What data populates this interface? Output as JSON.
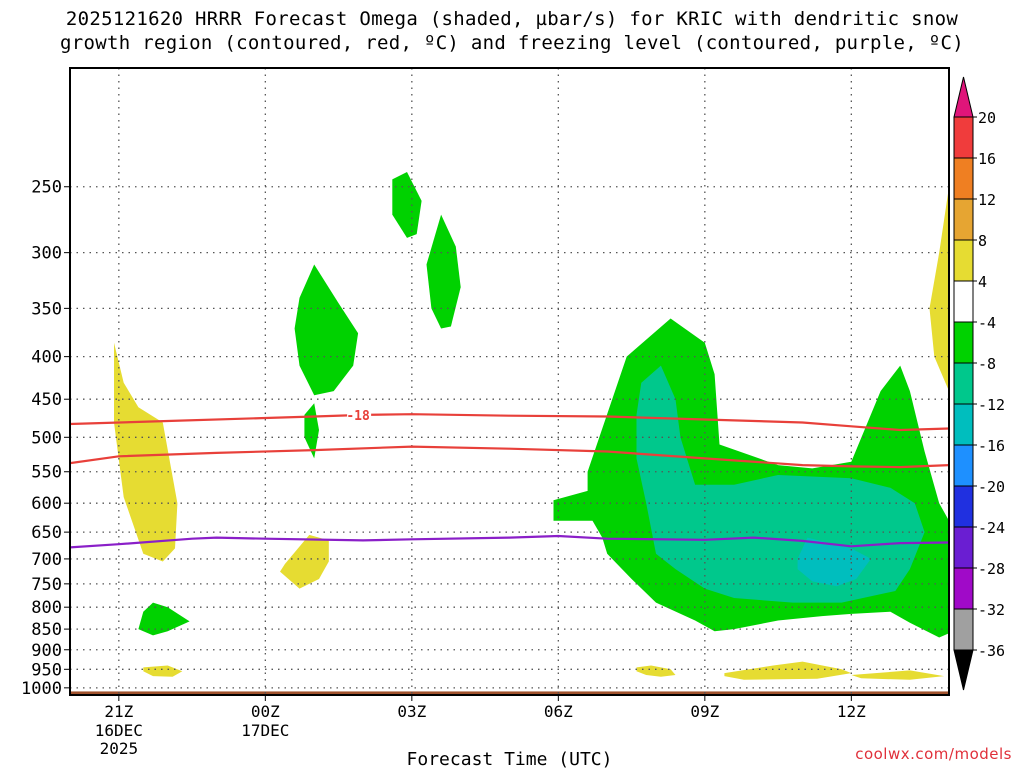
{
  "title": {
    "line1": "2025121620 HRRR Forecast Omega (shaded, µbar/s) for KRIC with dendritic snow",
    "line2": "growth region (contoured, red, ºC) and freezing level (contoured, purple, ºC)"
  },
  "credit": "coolwx.com/models",
  "colors": {
    "frame": "#000000",
    "ground": "#a0522d",
    "red_contour": "#e8403a",
    "purple_contour": "#8a1fc8",
    "grid": "#555555"
  },
  "chart_data": {
    "type": "heatmap",
    "title": "2025121620 HRRR Forecast Omega (shaded, µbar/s) for KRIC with dendritic snow growth region (contoured, red, ºC) and freezing level (contoured, purple, ºC)",
    "xlabel": "Forecast Time (UTC)",
    "ylabel": "",
    "x_range_hours": [
      -1.0,
      17.0
    ],
    "y_range_hpa": [
      180,
      1020
    ],
    "y_scale": "log",
    "x_ticks": [
      {
        "hour": 0,
        "label": "21Z",
        "date": "16DEC",
        "year": "2025"
      },
      {
        "hour": 3,
        "label": "00Z",
        "date": "17DEC",
        "year": ""
      },
      {
        "hour": 6,
        "label": "03Z",
        "date": "",
        "year": ""
      },
      {
        "hour": 9,
        "label": "06Z",
        "date": "",
        "year": ""
      },
      {
        "hour": 12,
        "label": "09Z",
        "date": "",
        "year": ""
      },
      {
        "hour": 15,
        "label": "12Z",
        "date": "",
        "year": ""
      }
    ],
    "y_ticks": [
      250,
      300,
      350,
      400,
      450,
      500,
      550,
      600,
      650,
      700,
      750,
      800,
      850,
      900,
      950,
      1000
    ],
    "ground_level_hpa": 1010,
    "colorbar": {
      "labels": [
        20,
        16,
        12,
        8,
        4,
        -4,
        -8,
        -12,
        -16,
        -20,
        -24,
        -28,
        -32,
        -36
      ],
      "levels": [
        {
          "upper": 20,
          "lower": 16,
          "color": "#f03c3c"
        },
        {
          "upper": 16,
          "lower": 12,
          "color": "#ef7f22"
        },
        {
          "upper": 12,
          "lower": 8,
          "color": "#e6a532"
        },
        {
          "upper": 8,
          "lower": 4,
          "color": "#e6dc32"
        },
        {
          "upper": 4,
          "lower": -4,
          "color": "#ffffff"
        },
        {
          "upper": -4,
          "lower": -8,
          "color": "#00d200"
        },
        {
          "upper": -8,
          "lower": -12,
          "color": "#00c88c"
        },
        {
          "upper": -12,
          "lower": -16,
          "color": "#00bebe"
        },
        {
          "upper": -16,
          "lower": -20,
          "color": "#1e90ff"
        },
        {
          "upper": -20,
          "lower": -24,
          "color": "#2030e0"
        },
        {
          "upper": -24,
          "lower": -28,
          "color": "#6a1ed2"
        },
        {
          "upper": -28,
          "lower": -32,
          "color": "#a00ac8"
        },
        {
          "upper": -32,
          "lower": -36,
          "color": "#a0a0a0"
        }
      ],
      "over_color": "#e0157a",
      "under_color": "#000000"
    },
    "shaded_regions": [
      {
        "level": "4 to 8",
        "color": "#e6dc32",
        "polygon": [
          [
            -0.1,
            385
          ],
          [
            0.1,
            430
          ],
          [
            0.4,
            460
          ],
          [
            0.9,
            480
          ],
          [
            1.2,
            600
          ],
          [
            1.15,
            680
          ],
          [
            0.9,
            705
          ],
          [
            0.5,
            690
          ],
          [
            0.1,
            590
          ],
          [
            -0.1,
            480
          ]
        ]
      },
      {
        "level": "4 to 8",
        "color": "#e6dc32",
        "polygon": [
          [
            0.5,
            945
          ],
          [
            1.0,
            940
          ],
          [
            1.3,
            955
          ],
          [
            1.1,
            970
          ],
          [
            0.7,
            968
          ],
          [
            0.5,
            955
          ]
        ]
      },
      {
        "level": "4 to 8",
        "color": "#e6dc32",
        "polygon": [
          [
            3.4,
            710
          ],
          [
            3.9,
            655
          ],
          [
            4.3,
            665
          ],
          [
            4.3,
            705
          ],
          [
            4.1,
            740
          ],
          [
            3.7,
            760
          ],
          [
            3.3,
            725
          ]
        ]
      },
      {
        "level": "4 to 8",
        "color": "#e6dc32",
        "polygon": [
          [
            10.6,
            945
          ],
          [
            10.9,
            940
          ],
          [
            11.3,
            950
          ],
          [
            11.4,
            965
          ],
          [
            11.1,
            970
          ],
          [
            10.8,
            965
          ],
          [
            10.6,
            955
          ]
        ]
      },
      {
        "level": "4 to 8",
        "color": "#e6dc32",
        "polygon": [
          [
            12.4,
            960
          ],
          [
            13.4,
            940
          ],
          [
            14.0,
            930
          ],
          [
            14.8,
            950
          ],
          [
            15.0,
            960
          ],
          [
            14.3,
            975
          ],
          [
            12.8,
            978
          ],
          [
            12.4,
            968
          ]
        ]
      },
      {
        "level": "4 to 8",
        "color": "#e6dc32",
        "polygon": [
          [
            15.0,
            965
          ],
          [
            16.2,
            953
          ],
          [
            16.9,
            968
          ],
          [
            16.2,
            978
          ],
          [
            15.2,
            974
          ]
        ]
      },
      {
        "level": "4 to 8",
        "color": "#e6dc32",
        "polygon": [
          [
            17.0,
            250
          ],
          [
            16.8,
            300
          ],
          [
            16.6,
            350
          ],
          [
            16.7,
            400
          ],
          [
            17.0,
            440
          ]
        ]
      },
      {
        "level": "-8 to -4",
        "color": "#00d200",
        "polygon": [
          [
            0.7,
            790
          ],
          [
            1.0,
            800
          ],
          [
            1.45,
            832
          ],
          [
            1.0,
            855
          ],
          [
            0.7,
            865
          ],
          [
            0.4,
            850
          ],
          [
            0.5,
            810
          ]
        ]
      },
      {
        "level": "-8 to -4",
        "color": "#00d200",
        "polygon": [
          [
            4.0,
            310
          ],
          [
            4.5,
            345
          ],
          [
            4.9,
            375
          ],
          [
            4.8,
            410
          ],
          [
            4.4,
            440
          ],
          [
            4.0,
            445
          ],
          [
            3.7,
            410
          ],
          [
            3.6,
            370
          ],
          [
            3.7,
            340
          ]
        ]
      },
      {
        "level": "-8 to -4",
        "color": "#00d200",
        "polygon": [
          [
            4.0,
            455
          ],
          [
            4.1,
            490
          ],
          [
            4.0,
            530
          ],
          [
            3.8,
            500
          ],
          [
            3.8,
            470
          ]
        ]
      },
      {
        "level": "-8 to -4",
        "color": "#00d200",
        "polygon": [
          [
            5.6,
            245
          ],
          [
            5.9,
            240
          ],
          [
            6.2,
            260
          ],
          [
            6.1,
            285
          ],
          [
            5.9,
            288
          ],
          [
            5.6,
            270
          ]
        ]
      },
      {
        "level": "-8 to -4",
        "color": "#00d200",
        "polygon": [
          [
            6.6,
            270
          ],
          [
            6.9,
            295
          ],
          [
            7.0,
            330
          ],
          [
            6.8,
            368
          ],
          [
            6.6,
            370
          ],
          [
            6.4,
            350
          ],
          [
            6.3,
            310
          ]
        ]
      },
      {
        "level": "-8 to -4",
        "color": "#00d200",
        "polygon": [
          [
            8.9,
            630
          ],
          [
            8.9,
            595
          ],
          [
            9.6,
            580
          ],
          [
            9.6,
            550
          ],
          [
            10.4,
            400
          ],
          [
            11.3,
            360
          ],
          [
            12.0,
            385
          ],
          [
            12.2,
            420
          ],
          [
            12.3,
            510
          ],
          [
            13.5,
            540
          ],
          [
            14.2,
            545
          ],
          [
            15.0,
            535
          ],
          [
            15.6,
            440
          ],
          [
            16.0,
            410
          ],
          [
            16.2,
            440
          ],
          [
            16.5,
            520
          ],
          [
            16.8,
            600
          ],
          [
            17.0,
            630
          ],
          [
            17.0,
            860
          ],
          [
            16.8,
            870
          ],
          [
            16.2,
            835
          ],
          [
            15.8,
            810
          ],
          [
            15.0,
            815
          ],
          [
            14.4,
            820
          ],
          [
            13.5,
            830
          ],
          [
            12.6,
            850
          ],
          [
            12.2,
            855
          ],
          [
            11.8,
            830
          ],
          [
            11.0,
            790
          ],
          [
            10.5,
            740
          ],
          [
            10.0,
            690
          ],
          [
            9.9,
            660
          ],
          [
            9.7,
            630
          ]
        ]
      },
      {
        "level": "-12 to -8",
        "color": "#00c88c",
        "polygon": [
          [
            10.7,
            430
          ],
          [
            11.1,
            410
          ],
          [
            11.4,
            450
          ],
          [
            11.5,
            500
          ],
          [
            11.8,
            570
          ],
          [
            12.6,
            570
          ],
          [
            13.5,
            555
          ],
          [
            15.0,
            560
          ],
          [
            15.8,
            575
          ],
          [
            16.3,
            600
          ],
          [
            16.5,
            650
          ],
          [
            16.2,
            720
          ],
          [
            15.9,
            765
          ],
          [
            14.8,
            790
          ],
          [
            13.8,
            790
          ],
          [
            12.6,
            780
          ],
          [
            12.0,
            760
          ],
          [
            11.4,
            720
          ],
          [
            11.0,
            690
          ],
          [
            10.8,
            600
          ],
          [
            10.6,
            530
          ],
          [
            10.6,
            470
          ]
        ]
      },
      {
        "level": "-16 to -12",
        "color": "#00bebe",
        "polygon": [
          [
            13.9,
            700
          ],
          [
            14.1,
            660
          ],
          [
            15.0,
            680
          ],
          [
            15.4,
            700
          ],
          [
            15.1,
            740
          ],
          [
            14.7,
            755
          ],
          [
            14.2,
            745
          ],
          [
            13.9,
            720
          ]
        ]
      }
    ],
    "contours": [
      {
        "name": "dendritic snow growth top",
        "color": "#e8403a",
        "label": "-18",
        "label_hour": 4.9,
        "points": [
          [
            -1.0,
            482
          ],
          [
            1.0,
            478
          ],
          [
            3.0,
            474
          ],
          [
            4.0,
            472
          ],
          [
            5.0,
            470
          ],
          [
            6.0,
            469
          ],
          [
            8.0,
            471
          ],
          [
            10.0,
            472
          ],
          [
            12.0,
            476
          ],
          [
            14.0,
            480
          ],
          [
            15.0,
            485
          ],
          [
            16.0,
            490
          ],
          [
            17.0,
            488
          ]
        ]
      },
      {
        "name": "dendritic snow growth bottom",
        "color": "#e8403a",
        "label": "",
        "label_hour": null,
        "points": [
          [
            -1.0,
            537
          ],
          [
            0.0,
            527
          ],
          [
            2.0,
            522
          ],
          [
            4.0,
            518
          ],
          [
            6.0,
            513
          ],
          [
            8.0,
            516
          ],
          [
            10.0,
            520
          ],
          [
            12.0,
            530
          ],
          [
            14.0,
            540
          ],
          [
            15.0,
            542
          ],
          [
            16.0,
            543
          ],
          [
            17.0,
            540
          ]
        ]
      },
      {
        "name": "freezing level",
        "color": "#8a1fc8",
        "label": "",
        "label_hour": null,
        "points": [
          [
            -1.0,
            678
          ],
          [
            0.0,
            672
          ],
          [
            1.5,
            662
          ],
          [
            2.0,
            660
          ],
          [
            3.0,
            662
          ],
          [
            5.0,
            665
          ],
          [
            6.0,
            663
          ],
          [
            8.0,
            660
          ],
          [
            9.0,
            657
          ],
          [
            10.0,
            662
          ],
          [
            12.0,
            664
          ],
          [
            13.0,
            660
          ],
          [
            14.0,
            666
          ],
          [
            15.0,
            676
          ],
          [
            16.0,
            670
          ],
          [
            17.0,
            669
          ]
        ]
      }
    ]
  }
}
